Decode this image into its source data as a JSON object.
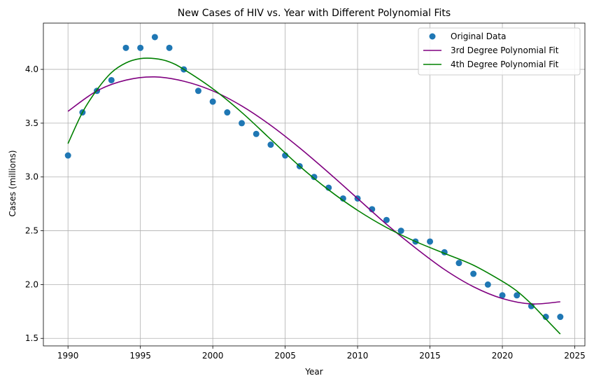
{
  "chart_data": {
    "type": "scatter",
    "title": "New Cases of HIV vs. Year with Different Polynomial Fits",
    "xlabel": "Year",
    "ylabel": "Cases (millions)",
    "xlim": [
      1988.3,
      2025.7
    ],
    "ylim": [
      1.43,
      4.43
    ],
    "xticks": [
      1990,
      1995,
      2000,
      2005,
      2010,
      2015,
      2020,
      2025
    ],
    "yticks": [
      1.5,
      2.0,
      2.5,
      3.0,
      3.5,
      4.0
    ],
    "ytick_labels": [
      "1.5",
      "2.0",
      "2.5",
      "3.0",
      "3.5",
      "4.0"
    ],
    "grid": true,
    "legend_position": "top-right",
    "series": [
      {
        "name": "Original Data",
        "kind": "scatter",
        "color": "#1f77b4",
        "x": [
          1990,
          1991,
          1992,
          1993,
          1994,
          1995,
          1996,
          1997,
          1998,
          1999,
          2000,
          2001,
          2002,
          2003,
          2004,
          2005,
          2006,
          2007,
          2008,
          2009,
          2010,
          2011,
          2012,
          2013,
          2014,
          2015,
          2016,
          2017,
          2018,
          2019,
          2020,
          2021,
          2022,
          2023,
          2024
        ],
        "y": [
          3.2,
          3.6,
          3.8,
          3.9,
          4.2,
          4.2,
          4.3,
          4.2,
          4.0,
          3.8,
          3.7,
          3.6,
          3.5,
          3.4,
          3.3,
          3.2,
          3.1,
          3.0,
          2.9,
          2.8,
          2.8,
          2.7,
          2.6,
          2.5,
          2.4,
          2.4,
          2.3,
          2.2,
          2.1,
          2.0,
          1.9,
          1.9,
          1.8,
          1.7,
          1.7
        ]
      },
      {
        "name": "3rd Degree Polynomial Fit",
        "kind": "line",
        "color": "#800080",
        "x": [
          1990,
          1992,
          1994,
          1996,
          1998,
          2000,
          2002,
          2004,
          2006,
          2008,
          2010,
          2012,
          2014,
          2016,
          2018,
          2020,
          2022,
          2024
        ],
        "y": [
          3.61,
          3.8,
          3.9,
          3.93,
          3.89,
          3.8,
          3.66,
          3.48,
          3.27,
          3.04,
          2.8,
          2.56,
          2.34,
          2.14,
          1.98,
          1.87,
          1.82,
          1.84
        ]
      },
      {
        "name": "4th Degree Polynomial Fit",
        "kind": "line",
        "color": "#008000",
        "x": [
          1990,
          1991,
          1992,
          1993,
          1994,
          1995,
          1996,
          1997,
          1998,
          2000,
          2002,
          2004,
          2006,
          2008,
          2010,
          2012,
          2014,
          2016,
          2018,
          2020,
          2021,
          2022,
          2023,
          2024
        ],
        "y": [
          3.31,
          3.6,
          3.81,
          3.97,
          4.06,
          4.1,
          4.1,
          4.07,
          4.0,
          3.82,
          3.6,
          3.35,
          3.1,
          2.88,
          2.69,
          2.53,
          2.4,
          2.29,
          2.18,
          2.03,
          1.94,
          1.82,
          1.68,
          1.54
        ]
      }
    ]
  }
}
